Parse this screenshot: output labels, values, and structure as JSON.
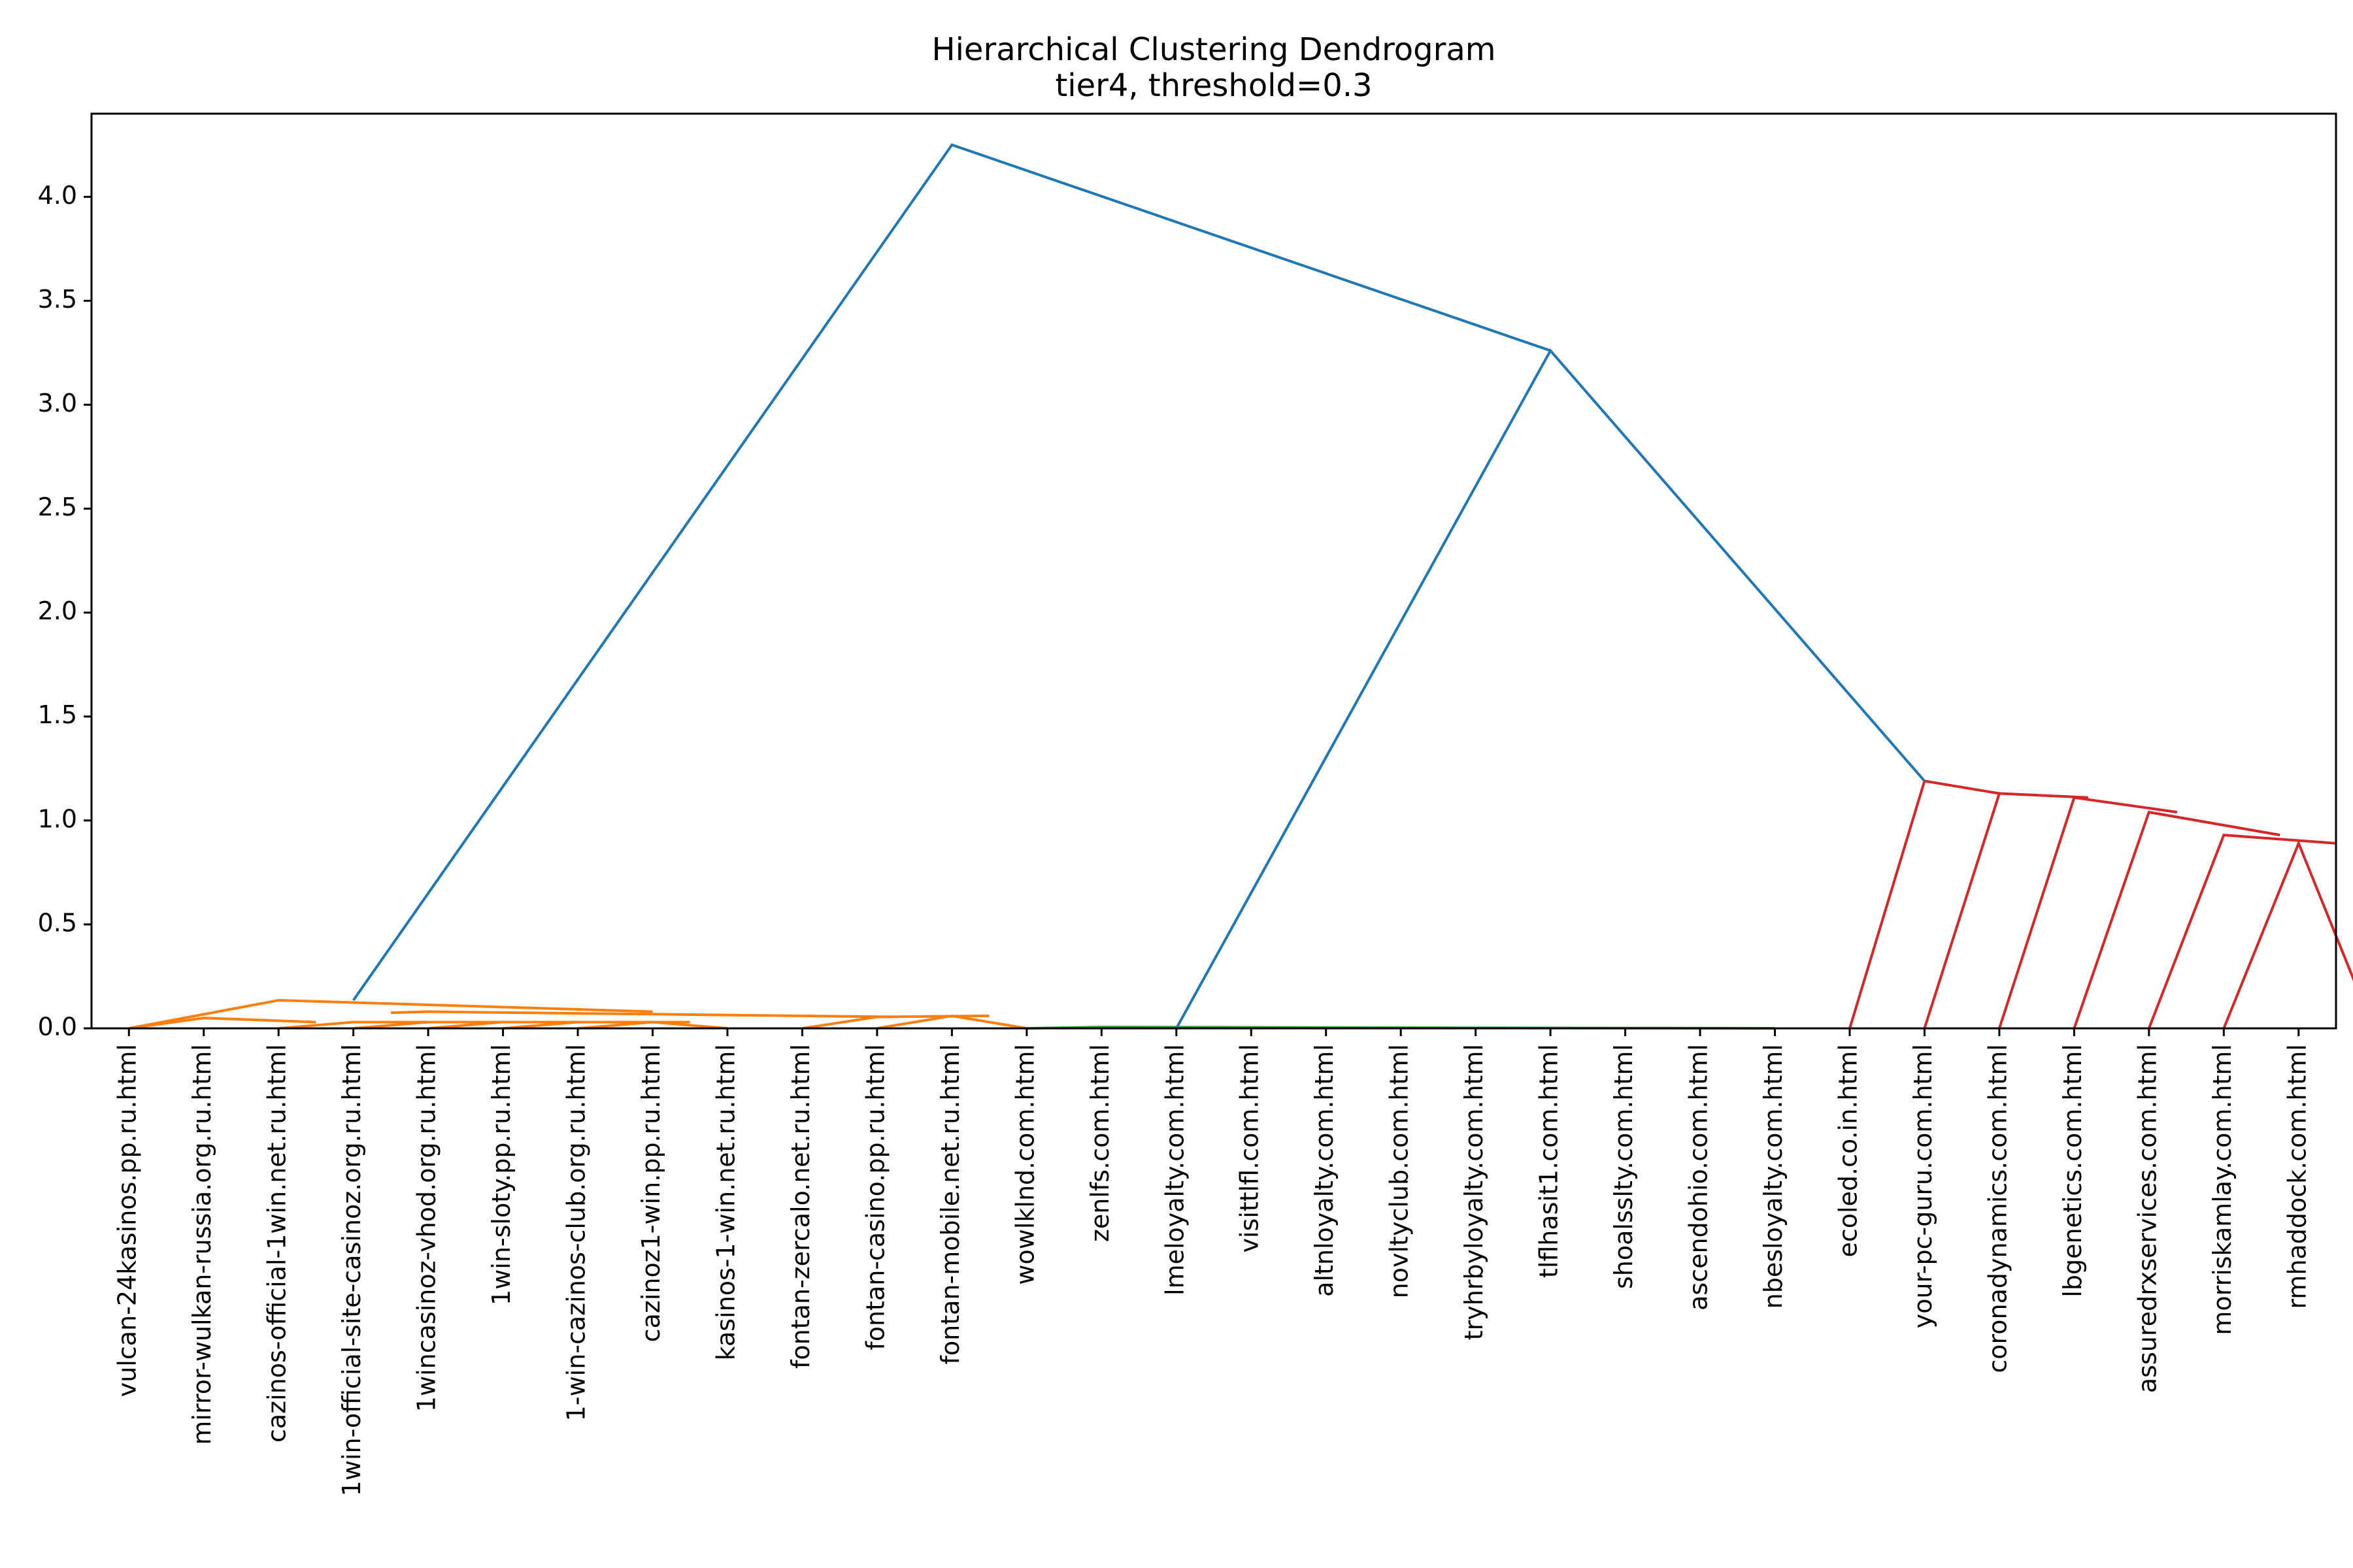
{
  "chart_data": {
    "type": "dendrogram",
    "title": "Hierarchical Clustering Dendrogram",
    "subtitle": "tier4, threshold=0.3",
    "xlabel": "",
    "ylabel": "",
    "ylim": [
      0,
      4.4
    ],
    "yticks": [
      0.0,
      0.5,
      1.0,
      1.5,
      2.0,
      2.5,
      3.0,
      3.5,
      4.0
    ],
    "ytick_labels": [
      "0.0",
      "0.5",
      "1.0",
      "1.5",
      "2.0",
      "2.5",
      "3.0",
      "3.5",
      "4.0"
    ],
    "grid": false,
    "colors": {
      "orange": "#ff7f0e",
      "green": "#2ca02c",
      "red": "#d62728",
      "blue": "#1f77b4"
    },
    "leaves": [
      "vulcan-24kasinos.pp.ru.html",
      "mirror-wulkan-russia.org.ru.html",
      "cazinos-official-1win.net.ru.html",
      "1win-official-site-casinoz.org.ru.html",
      "1wincasinoz-vhod.org.ru.html",
      "1win-sloty.pp.ru.html",
      "1-win-cazinos-club.org.ru.html",
      "cazinoz1-win.pp.ru.html",
      "kasinos-1-win.net.ru.html",
      "fontan-zercalo.net.ru.html",
      "fontan-casino.pp.ru.html",
      "fontan-mobile.net.ru.html",
      "wowlklnd.com.html",
      "zenlfs.com.html",
      "lmeloyalty.com.html",
      "visittlfl.com.html",
      "altnloyalty.com.html",
      "novltyclub.com.html",
      "tryhrbyloyalty.com.html",
      "tlflhasit1.com.html",
      "shoalsslty.com.html",
      "ascendohio.com.html",
      "nbesloyalty.com.html",
      "ecoled.co.in.html",
      "your-pc-guru.com.html",
      "coronadynamics.com.html",
      "lbgenetics.com.html",
      "assuredrxservices.com.html",
      "morriskamlay.com.html",
      "rmhaddock.com.html"
    ],
    "links": [
      {
        "color": "orange",
        "x": [
          7,
          8,
          8,
          9
        ],
        "y": [
          0,
          0.03,
          0.03,
          0
        ]
      },
      {
        "color": "orange",
        "x": [
          6,
          7,
          7,
          8.5
        ],
        "y": [
          0,
          0.03,
          0.03,
          0.03
        ]
      },
      {
        "color": "orange",
        "x": [
          5,
          6,
          6,
          7.75
        ],
        "y": [
          0,
          0.03,
          0.03,
          0.03
        ]
      },
      {
        "color": "orange",
        "x": [
          4,
          5,
          5,
          6.875
        ],
        "y": [
          0,
          0.03,
          0.03,
          0.03
        ]
      },
      {
        "color": "orange",
        "x": [
          3,
          4,
          4,
          5.9375
        ],
        "y": [
          0,
          0.03,
          0.03,
          0.03
        ]
      },
      {
        "color": "orange",
        "x": [
          1,
          2,
          2,
          3.5
        ],
        "y": [
          0,
          0.05,
          0.05,
          0.03
        ]
      },
      {
        "color": "orange",
        "x": [
          11,
          12,
          12,
          13
        ],
        "y": [
          0,
          0.06,
          0.06,
          0
        ]
      },
      {
        "color": "orange",
        "x": [
          10,
          11,
          11,
          12.5
        ],
        "y": [
          0,
          0.055,
          0.055,
          0.06
        ]
      },
      {
        "color": "orange",
        "x": [
          4.5,
          5,
          5,
          11.25
        ],
        "y": [
          0.075,
          0.08,
          0.08,
          0.055
        ]
      },
      {
        "color": "orange",
        "x": [
          1,
          3,
          3,
          8
        ],
        "y": [
          0,
          0.135,
          0.135,
          0.08
        ]
      },
      {
        "color": "green",
        "x": [
          13,
          14,
          14,
          23
        ],
        "y": [
          0,
          0.006,
          0.006,
          0
        ]
      },
      {
        "color": "red",
        "x": [
          29,
          30,
          30,
          31
        ],
        "y": [
          0,
          0.89,
          0.89,
          0
        ]
      },
      {
        "color": "red",
        "x": [
          28,
          29,
          29,
          30.5
        ],
        "y": [
          0,
          0.93,
          0.93,
          0.89
        ]
      },
      {
        "color": "red",
        "x": [
          27,
          28,
          28,
          29.75
        ],
        "y": [
          0,
          1.04,
          1.04,
          0.93
        ]
      },
      {
        "color": "red",
        "x": [
          26,
          27,
          27,
          28.375
        ],
        "y": [
          0,
          1.11,
          1.11,
          1.04
        ]
      },
      {
        "color": "red",
        "x": [
          25,
          26,
          26,
          27.1875
        ],
        "y": [
          0,
          1.13,
          1.13,
          1.11
        ]
      },
      {
        "color": "red",
        "x": [
          24,
          25,
          25,
          26
        ],
        "y": [
          0,
          1.19,
          1.19,
          1.13
        ]
      },
      {
        "color": "blue",
        "x": [
          15,
          20,
          20,
          25
        ],
        "y": [
          0,
          3.26,
          3.26,
          1.19
        ]
      },
      {
        "color": "blue",
        "x": [
          4,
          12,
          12,
          20
        ],
        "y": [
          0.135,
          4.25,
          4.25,
          3.26
        ]
      }
    ]
  }
}
